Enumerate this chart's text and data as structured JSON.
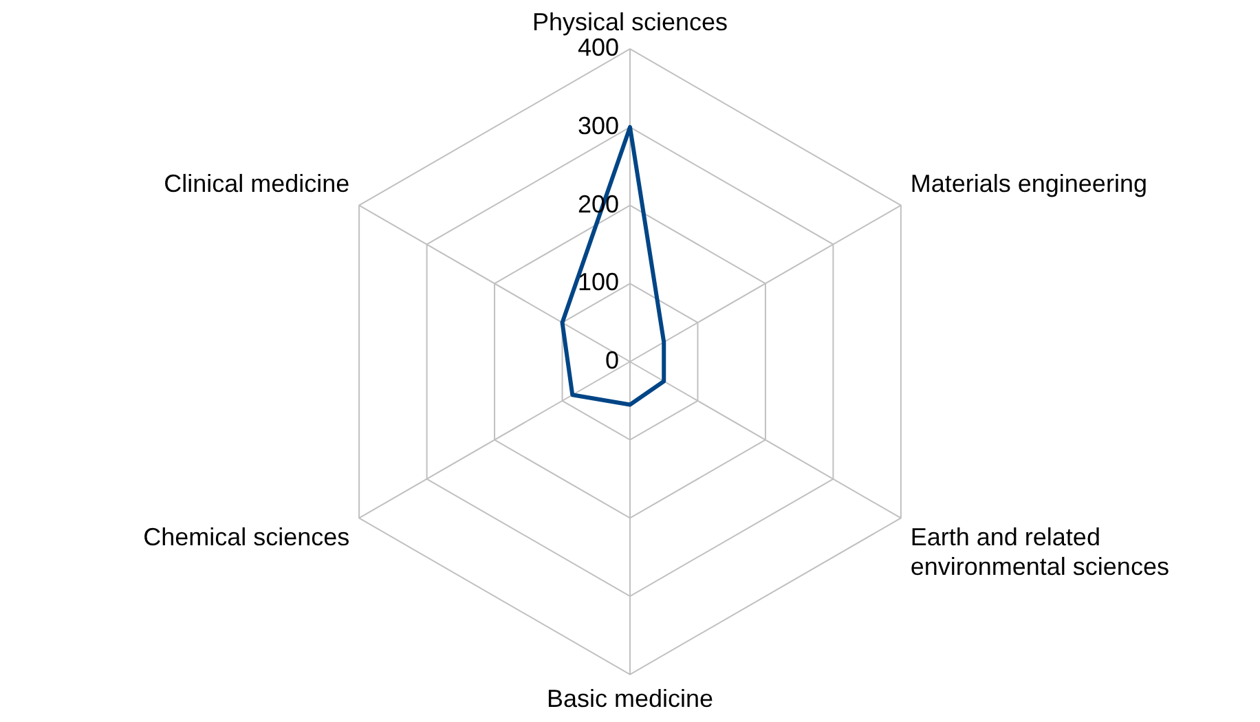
{
  "chart_data": {
    "type": "radar",
    "categories": [
      "Physical sciences",
      "Materials engineering",
      "Earth and related environmental sciences",
      "Basic medicine",
      "Chemical sciences",
      "Clinical medicine"
    ],
    "series": [
      {
        "color": "#004586",
        "values": [
          300,
          50,
          50,
          55,
          85,
          100
        ]
      }
    ],
    "ylim": [
      0,
      400
    ],
    "yticks": [
      0,
      100,
      200,
      300,
      400
    ],
    "grid": true,
    "legend": false,
    "marker": "none",
    "line_style": "solid"
  }
}
